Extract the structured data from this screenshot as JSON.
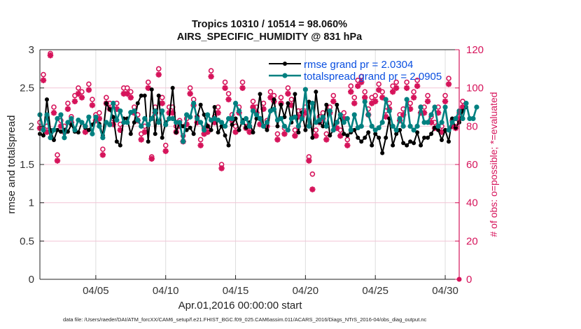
{
  "chart_data": {
    "type": "line",
    "title": "Tropics 10310 / 10514 = 98.060%",
    "subtitle": "AIRS_SPECIFIC_HUMIDITY @ 831 hPa",
    "xlabel": "Apr.01,2016 00:00:00 start",
    "ylabel": "rmse and totalspread",
    "y2label": "# of obs: o=possible; *=evaluated",
    "xlim_days": [
      0,
      30
    ],
    "ylim": [
      0,
      3
    ],
    "y2lim": [
      0,
      120
    ],
    "grid": true,
    "x_ticks": [
      {
        "day": 4,
        "label": "04/05"
      },
      {
        "day": 9,
        "label": "04/10"
      },
      {
        "day": 14,
        "label": "04/15"
      },
      {
        "day": 19,
        "label": "04/20"
      },
      {
        "day": 24,
        "label": "04/25"
      },
      {
        "day": 29,
        "label": "04/30"
      }
    ],
    "y_ticks": [
      {
        "value": 0,
        "label": "0"
      },
      {
        "value": 0.5,
        "label": "0.5"
      },
      {
        "value": 1,
        "label": "1"
      },
      {
        "value": 1.5,
        "label": "1.5"
      },
      {
        "value": 2,
        "label": "2"
      },
      {
        "value": 2.5,
        "label": "2.5"
      },
      {
        "value": 3,
        "label": "3"
      }
    ],
    "y2_ticks": [
      {
        "value": 0,
        "label": "0"
      },
      {
        "value": 20,
        "label": "20"
      },
      {
        "value": 40,
        "label": "40"
      },
      {
        "value": 60,
        "label": "60"
      },
      {
        "value": 80,
        "label": "80"
      },
      {
        "value": 100,
        "label": "100"
      },
      {
        "value": 120,
        "label": "120"
      }
    ],
    "legend": {
      "placement": "top-right",
      "entries": [
        "rmse grand pr = 2.0304",
        "totalspread grand pr = 2.0905"
      ]
    },
    "colors": {
      "rmse": "#000000",
      "totalspread": "#008080",
      "obs": "#D6145B",
      "legend_text": "#0A4FE0",
      "hgrid": "#F2C6D6",
      "vgrid": "#DDDDDD"
    },
    "x_step_days": 0.25,
    "series": [
      {
        "name": "rmse",
        "values": [
          1.9,
          1.88,
          2.35,
          1.95,
          1.82,
          1.95,
          1.93,
          1.95,
          1.93,
          2.02,
          1.93,
          1.92,
          2.05,
          1.98,
          1.95,
          2.02,
          2.1,
          2.03,
          1.88,
          2.3,
          2.22,
          2.12,
          1.8,
          1.75,
          2.1,
          2.1,
          1.9,
          2.05,
          2.3,
          2.4,
          2.4,
          1.8,
          2.48,
          1.9,
          2.4,
          1.85,
          2.05,
          2.1,
          2.5,
          1.92,
          2.05,
          2.0,
          1.95,
          1.98,
          1.9,
          2.12,
          2.28,
          2.15,
          2.0,
          1.95,
          2.25,
          1.92,
          2.0,
          1.88,
          1.75,
          2.02,
          2.1,
          1.95,
          2.08,
          1.98,
          2.05,
          1.92,
          2.1,
          2.42,
          2.0,
          1.95,
          2.2,
          2.35,
          2.0,
          2.28,
          2.12,
          2.3,
          2.05,
          2.42,
          1.92,
          2.18,
          1.95,
          2.32,
          1.85,
          2.45,
          2.05,
          2.0,
          2.28,
          1.88,
          1.95,
          2.28,
          2.12,
          1.9,
          1.88,
          1.92,
          1.95,
          1.85,
          1.8,
          1.85,
          1.92,
          1.75,
          1.9,
          1.85,
          1.65,
          1.85,
          2.1,
          1.75,
          1.9,
          1.95,
          1.78,
          1.75,
          1.8,
          1.78,
          1.92,
          1.75,
          1.85,
          1.85,
          1.9,
          1.98,
          1.95,
          1.82,
          1.95,
          1.8,
          2.1,
          1.98,
          2.05,
          2.2,
          2.25
        ],
        "marker": "circle"
      },
      {
        "name": "totalspread",
        "values": [
          2.15,
          1.95,
          2.15,
          1.85,
          1.95,
          2.1,
          2.15,
          1.85,
          2.05,
          2.1,
          1.95,
          2.08,
          2.05,
          2.0,
          2.12,
          1.9,
          2.12,
          2.0,
          1.85,
          2.05,
          2.02,
          2.3,
          2.08,
          2.2,
          2.05,
          2.05,
          2.18,
          2.2,
          2.08,
          2.0,
          2.1,
          2.02,
          2.1,
          2.2,
          2.05,
          2.2,
          2.02,
          2.1,
          2.1,
          2.05,
          2.05,
          1.8,
          2.15,
          2.12,
          2.3,
          2.1,
          2.05,
          1.95,
          2.15,
          2.08,
          2.1,
          2.08,
          2.05,
          2.0,
          2.1,
          2.1,
          2.3,
          2.2,
          2.05,
          2.1,
          2.0,
          2.2,
          2.15,
          2.1,
          2.0,
          2.05,
          2.2,
          2.22,
          2.08,
          2.1,
          2.0,
          1.95,
          2.1,
          2.12,
          2.0,
          2.1,
          2.48,
          2.0,
          2.3,
          2.05,
          2.08,
          2.12,
          2.0,
          2.2,
          1.95,
          2.05,
          2.15,
          2.05,
          2.1,
          1.95,
          2.15,
          1.98,
          2.0,
          2.32,
          2.15,
          2.0,
          1.95,
          1.98,
          2.05,
          2.35,
          2.2,
          2.0,
          1.95,
          2.1,
          2.0,
          2.35,
          2.0,
          1.95,
          2.0,
          2.25,
          2.05,
          2.05,
          2.15,
          2.25,
          2.0,
          2.05,
          2.25,
          1.95,
          2.05,
          2.1,
          2.2,
          2.1,
          2.3,
          2.1,
          2.1,
          2.25
        ],
        "marker": "circle"
      },
      {
        "name": "possible",
        "values": [
          82,
          107,
          80,
          118,
          90,
          65,
          83,
          80,
          92,
          85,
          96,
          100,
          98,
          80,
          102,
          94,
          86,
          87,
          68,
          95,
          92,
          84,
          92,
          81,
          100,
          100,
          98,
          90,
          86,
          76,
          80,
          103,
          64,
          90,
          110,
          95,
          70,
          90,
          90,
          80,
          83,
          75,
          84,
          100,
          94,
          85,
          73,
          79,
          80,
          109,
          85,
          90,
          60,
          103,
          97,
          86,
          80,
          90,
          103,
          82,
          80,
          93,
          90,
          84,
          92,
          83,
          98,
          96,
          76,
          95,
          79,
          100,
          94,
          78,
          88,
          88,
          90,
          64,
          55,
          78,
          85,
          87,
          76,
          90,
          96,
          82,
          78,
          87,
          73,
          101,
          95,
          104,
          106,
          98,
          89,
          95,
          96,
          102,
          98,
          88,
          92,
          101,
          103,
          86,
          89,
          103,
          92,
          98,
          104,
          90,
          90,
          96,
          85,
          82,
          90,
          80,
          96,
          105,
          83,
          82,
          87,
          93
        ],
        "marker": "o"
      },
      {
        "name": "evaluated",
        "values": [
          79,
          104,
          77,
          117,
          87,
          62,
          80,
          77,
          89,
          82,
          93,
          97,
          95,
          77,
          99,
          91,
          83,
          84,
          65,
          92,
          89,
          81,
          89,
          78,
          97,
          97,
          95,
          87,
          83,
          73,
          77,
          100,
          63,
          87,
          107,
          92,
          67,
          87,
          87,
          77,
          80,
          72,
          81,
          97,
          91,
          82,
          70,
          76,
          77,
          106,
          82,
          87,
          58,
          100,
          94,
          83,
          77,
          87,
          100,
          79,
          77,
          90,
          87,
          81,
          89,
          80,
          95,
          93,
          73,
          92,
          76,
          97,
          91,
          75,
          85,
          85,
          87,
          62,
          47,
          75,
          82,
          84,
          73,
          87,
          93,
          79,
          75,
          84,
          70,
          98,
          92,
          101,
          103,
          95,
          86,
          92,
          93,
          99,
          95,
          85,
          89,
          98,
          100,
          83,
          86,
          100,
          89,
          95,
          101,
          87,
          87,
          93,
          82,
          79,
          87,
          77,
          93,
          102,
          80,
          79,
          84,
          90
        ],
        "marker": "*"
      }
    ]
  },
  "footer": "data file: /Users/raeder/DAI/ATM_forcXX/CAM6_setup/f.e21.FHIST_BGC.f09_025.CAM6assim.011/ACARS_2016/Diags_NTrS_2016-04/obs_diag_output.nc"
}
